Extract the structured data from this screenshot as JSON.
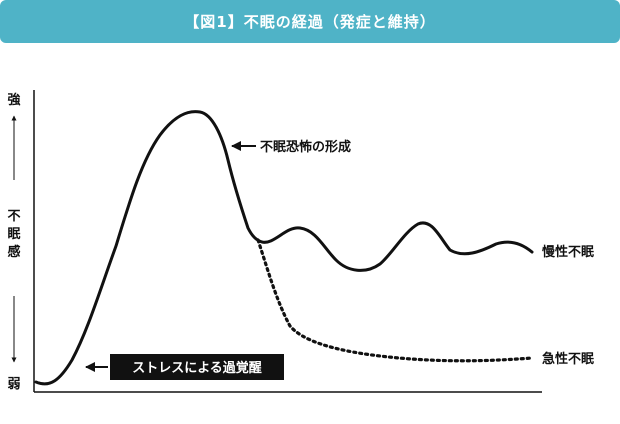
{
  "header": {
    "title": "【図1】不眠の経過（発症と維持）"
  },
  "y_axis": {
    "top_label": "強",
    "bottom_label": "弱",
    "middle_label": [
      "不",
      "眠",
      "感"
    ]
  },
  "annotations": {
    "peak": "不眠恐怖の形成",
    "trigger": "ストレスによる過覚醒",
    "chronic": "慢性不眠",
    "acute": "急性不眠"
  },
  "colors": {
    "header_bg": "#4fb3c7",
    "line": "#111111",
    "callout_bg": "#111111"
  }
}
